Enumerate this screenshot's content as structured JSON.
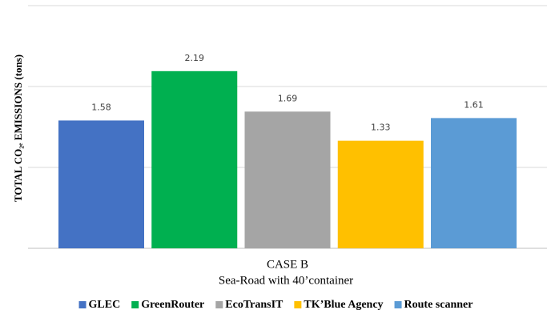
{
  "chart_data": {
    "type": "bar",
    "y_label": "TOTAL CO₂ₑ EMISSIONS (tons)",
    "categories": [
      "CASE B"
    ],
    "x_label": "Sea-Road with 40’container",
    "series": [
      {
        "name": "GLEC",
        "color": "#4472c4",
        "values": [
          1.58
        ]
      },
      {
        "name": "GreenRouter",
        "color": "#00b050",
        "values": [
          2.19
        ]
      },
      {
        "name": "EcoTransIT",
        "color": "#a5a5a5",
        "values": [
          1.69
        ]
      },
      {
        "name": "TK’Blue Agency",
        "color": "#ffc000",
        "values": [
          1.33
        ]
      },
      {
        "name": "Route scanner",
        "color": "#5b9bd5",
        "values": [
          1.61
        ]
      }
    ],
    "ylim": [
      0,
      3
    ],
    "yticks": [
      0,
      1,
      2,
      3
    ],
    "grid": true,
    "legend": "bottom"
  }
}
